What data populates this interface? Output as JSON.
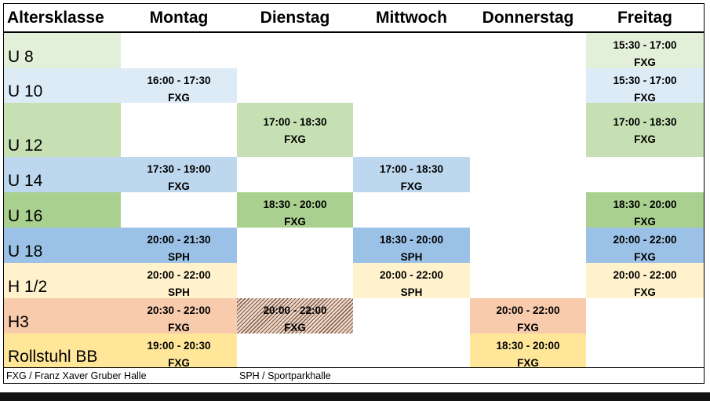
{
  "header": {
    "age_label": "Altersklasse",
    "days": [
      "Montag",
      "Dienstag",
      "Mittwoch",
      "Donnerstag",
      "Freitag"
    ]
  },
  "colors": {
    "U8": "#e2efd9",
    "U10": "#ddebf7",
    "U12": "#c6e0b4",
    "U14": "#bdd7ee",
    "U16": "#a9d08e",
    "U18": "#9bc2e6",
    "H12": "#fff2cc",
    "H3": "#f8cbad",
    "Rollstuhl": "#ffe699"
  },
  "rows": [
    {
      "age": "U 8",
      "cells": [
        null,
        null,
        null,
        null,
        {
          "time": "15:30 - 17:00",
          "place": "FXG"
        }
      ]
    },
    {
      "age": "U 10",
      "cells": [
        {
          "time": "16:00 - 17:30",
          "place": "FXG"
        },
        null,
        null,
        null,
        {
          "time": "15:30 - 17:00",
          "place": "FXG"
        }
      ]
    },
    {
      "age": "U 12",
      "cells": [
        null,
        {
          "time": "17:00 - 18:30",
          "place": "FXG"
        },
        null,
        null,
        {
          "time": "17:00 - 18:30",
          "place": "FXG"
        }
      ]
    },
    {
      "age": "U 14",
      "cells": [
        {
          "time": "17:30 - 19:00",
          "place": "FXG"
        },
        null,
        {
          "time": "17:00 - 18:30",
          "place": "FXG"
        },
        null,
        null
      ]
    },
    {
      "age": "U 16",
      "cells": [
        null,
        {
          "time": "18:30 - 20:00",
          "place": "FXG"
        },
        null,
        null,
        {
          "time": "18:30 - 20:00",
          "place": "FXG"
        }
      ]
    },
    {
      "age": "U 18",
      "cells": [
        {
          "time": "20:00 - 21:30",
          "place": "SPH"
        },
        null,
        {
          "time": "18:30 - 20:00",
          "place": "SPH"
        },
        null,
        {
          "time": "20:00 - 22:00",
          "place": "FXG"
        }
      ]
    },
    {
      "age": "H 1/2",
      "cells": [
        {
          "time": "20:00 - 22:00",
          "place": "SPH"
        },
        null,
        {
          "time": "20:00 - 22:00",
          "place": "SPH"
        },
        null,
        {
          "time": "20:00 - 22:00",
          "place": "FXG"
        }
      ]
    },
    {
      "age": "H3",
      "cells": [
        {
          "time": "20:30 - 22:00",
          "place": "FXG"
        },
        {
          "time": "20:00 - 22:00",
          "place": "FXG"
        },
        null,
        {
          "time": "20:00 - 22:00",
          "place": "FXG"
        },
        null
      ]
    },
    {
      "age": "Rollstuhl BB",
      "cells": [
        {
          "time": "19:00 - 20:30",
          "place": "FXG"
        },
        null,
        null,
        {
          "time": "18:30 - 20:00",
          "place": "FXG"
        },
        null
      ]
    }
  ],
  "footer": {
    "legend_fxg": "FXG / Franz Xaver Gruber Halle",
    "legend_sph": "SPH / Sportparkhalle"
  }
}
